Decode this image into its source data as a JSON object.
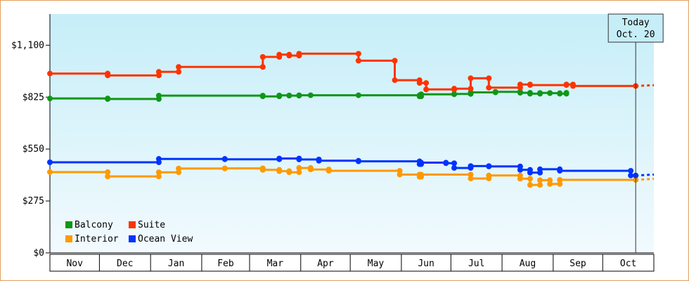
{
  "chart_data": {
    "type": "line",
    "title": "",
    "xlabel": "",
    "ylabel": "",
    "ylim": [
      0,
      1265
    ],
    "yticks": [
      "$0",
      "$275",
      "$550",
      "$825",
      "$1,100"
    ],
    "ytick_values": [
      0,
      275,
      550,
      825,
      1100
    ],
    "months": [
      "Nov",
      "Dec",
      "Jan",
      "Feb",
      "Mar",
      "Apr",
      "May",
      "Jun",
      "Jul",
      "Aug",
      "Sep",
      "Oct"
    ],
    "x_range": [
      "2023-10-31",
      "2024-10-31"
    ],
    "today": {
      "line1": "Today",
      "line2": "Oct. 20",
      "date": "2024-10-20"
    },
    "legend": [
      "Balcony",
      "Suite",
      "Interior",
      "Ocean View"
    ],
    "series": [
      {
        "name": "Balcony",
        "color": "#109618",
        "projected": false,
        "points": [
          [
            "2023-10-31",
            818
          ],
          [
            "2023-12-05",
            818
          ],
          [
            "2023-12-05",
            815
          ],
          [
            "2024-01-05",
            815
          ],
          [
            "2024-01-05",
            833
          ],
          [
            "2024-03-08",
            833
          ],
          [
            "2024-03-08",
            829
          ],
          [
            "2024-03-18",
            829
          ],
          [
            "2024-03-18",
            834
          ],
          [
            "2024-03-24",
            834
          ],
          [
            "2024-03-24",
            833
          ],
          [
            "2024-03-30",
            833
          ],
          [
            "2024-03-30",
            835
          ],
          [
            "2024-04-06",
            835
          ],
          [
            "2024-05-05",
            835
          ],
          [
            "2024-06-11",
            835
          ],
          [
            "2024-06-11",
            829
          ],
          [
            "2024-06-12",
            829
          ],
          [
            "2024-06-12",
            840
          ],
          [
            "2024-07-02",
            840
          ],
          [
            "2024-07-02",
            842
          ],
          [
            "2024-07-12",
            842
          ],
          [
            "2024-07-12",
            850
          ],
          [
            "2024-07-27",
            850
          ],
          [
            "2024-07-27",
            853
          ],
          [
            "2024-08-11",
            853
          ],
          [
            "2024-08-11",
            848
          ],
          [
            "2024-08-17",
            848
          ],
          [
            "2024-08-17",
            843
          ],
          [
            "2024-08-23",
            843
          ],
          [
            "2024-08-23",
            847
          ],
          [
            "2024-08-29",
            847
          ],
          [
            "2024-08-29",
            846
          ],
          [
            "2024-09-04",
            846
          ],
          [
            "2024-09-04",
            843
          ],
          [
            "2024-09-08",
            843
          ],
          [
            "2024-09-08",
            848
          ]
        ]
      },
      {
        "name": "Suite",
        "color": "#ff3300",
        "projected": true,
        "points": [
          [
            "2023-10-31",
            950
          ],
          [
            "2023-12-05",
            950
          ],
          [
            "2023-12-05",
            940
          ],
          [
            "2024-01-05",
            940
          ],
          [
            "2024-01-05",
            959
          ],
          [
            "2024-01-17",
            959
          ],
          [
            "2024-01-17",
            985
          ],
          [
            "2024-03-08",
            985
          ],
          [
            "2024-03-08",
            1038
          ],
          [
            "2024-03-18",
            1038
          ],
          [
            "2024-03-18",
            1050
          ],
          [
            "2024-03-24",
            1050
          ],
          [
            "2024-03-24",
            1045
          ],
          [
            "2024-03-30",
            1045
          ],
          [
            "2024-03-30",
            1055
          ],
          [
            "2024-05-05",
            1055
          ],
          [
            "2024-05-05",
            1018
          ],
          [
            "2024-05-27",
            1018
          ],
          [
            "2024-05-27",
            915
          ],
          [
            "2024-06-11",
            915
          ],
          [
            "2024-06-11",
            900
          ],
          [
            "2024-06-15",
            900
          ],
          [
            "2024-06-15",
            866
          ],
          [
            "2024-07-02",
            866
          ],
          [
            "2024-07-02",
            870
          ],
          [
            "2024-07-12",
            870
          ],
          [
            "2024-07-12",
            925
          ],
          [
            "2024-07-23",
            925
          ],
          [
            "2024-07-23",
            875
          ],
          [
            "2024-08-11",
            875
          ],
          [
            "2024-08-11",
            892
          ],
          [
            "2024-08-17",
            892
          ],
          [
            "2024-08-17",
            889
          ],
          [
            "2024-09-08",
            889
          ],
          [
            "2024-09-08",
            892
          ],
          [
            "2024-09-12",
            892
          ],
          [
            "2024-09-12",
            884
          ],
          [
            "2024-10-20",
            884
          ]
        ],
        "projection": [
          [
            "2024-10-20",
            884
          ],
          [
            "2024-10-31",
            888
          ]
        ]
      },
      {
        "name": "Interior",
        "color": "#ff9900",
        "projected": true,
        "points": [
          [
            "2023-10-31",
            428
          ],
          [
            "2023-12-05",
            428
          ],
          [
            "2023-12-05",
            405
          ],
          [
            "2024-01-05",
            405
          ],
          [
            "2024-01-05",
            427
          ],
          [
            "2024-01-17",
            427
          ],
          [
            "2024-01-17",
            447
          ],
          [
            "2024-02-14",
            447
          ],
          [
            "2024-02-14",
            448
          ],
          [
            "2024-03-08",
            448
          ],
          [
            "2024-03-08",
            440
          ],
          [
            "2024-03-18",
            440
          ],
          [
            "2024-03-18",
            433
          ],
          [
            "2024-03-24",
            433
          ],
          [
            "2024-03-24",
            427
          ],
          [
            "2024-03-30",
            427
          ],
          [
            "2024-03-30",
            450
          ],
          [
            "2024-04-06",
            450
          ],
          [
            "2024-04-06",
            442
          ],
          [
            "2024-04-17",
            442
          ],
          [
            "2024-04-17",
            435
          ],
          [
            "2024-05-30",
            435
          ],
          [
            "2024-05-30",
            415
          ],
          [
            "2024-06-11",
            415
          ],
          [
            "2024-06-11",
            403
          ],
          [
            "2024-06-12",
            403
          ],
          [
            "2024-06-12",
            415
          ],
          [
            "2024-07-12",
            415
          ],
          [
            "2024-07-12",
            394
          ],
          [
            "2024-07-23",
            394
          ],
          [
            "2024-07-23",
            410
          ],
          [
            "2024-08-11",
            410
          ],
          [
            "2024-08-11",
            393
          ],
          [
            "2024-08-17",
            393
          ],
          [
            "2024-08-17",
            360
          ],
          [
            "2024-08-23",
            360
          ],
          [
            "2024-08-23",
            385
          ],
          [
            "2024-08-29",
            385
          ],
          [
            "2024-08-29",
            365
          ],
          [
            "2024-09-04",
            365
          ],
          [
            "2024-09-04",
            387
          ],
          [
            "2024-10-20",
            387
          ]
        ],
        "projection": [
          [
            "2024-10-20",
            387
          ],
          [
            "2024-10-31",
            392
          ]
        ]
      },
      {
        "name": "Ocean View",
        "color": "#0033ff",
        "projected": true,
        "points": [
          [
            "2023-10-31",
            480
          ],
          [
            "2024-01-05",
            480
          ],
          [
            "2024-01-05",
            498
          ],
          [
            "2024-02-14",
            498
          ],
          [
            "2024-02-14",
            496
          ],
          [
            "2024-03-18",
            496
          ],
          [
            "2024-03-18",
            500
          ],
          [
            "2024-03-30",
            500
          ],
          [
            "2024-03-30",
            495
          ],
          [
            "2024-04-11",
            495
          ],
          [
            "2024-04-11",
            488
          ],
          [
            "2024-05-05",
            488
          ],
          [
            "2024-05-05",
            485
          ],
          [
            "2024-06-11",
            485
          ],
          [
            "2024-06-11",
            470
          ],
          [
            "2024-06-12",
            470
          ],
          [
            "2024-06-12",
            478
          ],
          [
            "2024-06-27",
            478
          ],
          [
            "2024-06-27",
            475
          ],
          [
            "2024-07-02",
            475
          ],
          [
            "2024-07-02",
            450
          ],
          [
            "2024-07-12",
            450
          ],
          [
            "2024-07-12",
            460
          ],
          [
            "2024-07-23",
            460
          ],
          [
            "2024-07-23",
            458
          ],
          [
            "2024-08-11",
            458
          ],
          [
            "2024-08-11",
            440
          ],
          [
            "2024-08-17",
            440
          ],
          [
            "2024-08-17",
            425
          ],
          [
            "2024-08-23",
            425
          ],
          [
            "2024-08-23",
            443
          ],
          [
            "2024-09-04",
            443
          ],
          [
            "2024-09-04",
            435
          ],
          [
            "2024-10-17",
            435
          ],
          [
            "2024-10-17",
            410
          ],
          [
            "2024-10-20",
            410
          ]
        ],
        "projection": [
          [
            "2024-10-20",
            410
          ],
          [
            "2024-10-31",
            415
          ]
        ]
      }
    ]
  }
}
